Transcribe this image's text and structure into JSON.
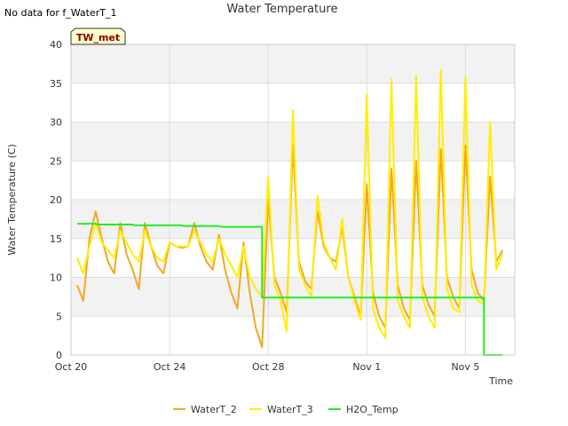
{
  "no_data_text": "No data for f_WaterT_1",
  "badge": {
    "label": "TW_met",
    "fill": "#ffffcc",
    "text_color": "#8b0000"
  },
  "chart_data": {
    "type": "line",
    "title": "Water Temperature",
    "xlabel": "Time",
    "ylabel": "Water Temperature (C)",
    "xlim": [
      "2023-10-20",
      "2023-11-07"
    ],
    "ylim": [
      0,
      40
    ],
    "yticks": [
      0,
      5,
      10,
      15,
      20,
      25,
      30,
      35,
      40
    ],
    "xticks": [
      {
        "date": "2023-10-20",
        "label": "Oct 20"
      },
      {
        "date": "2023-10-24",
        "label": "Oct 24"
      },
      {
        "date": "2023-10-28",
        "label": "Oct 28"
      },
      {
        "date": "2023-11-01",
        "label": "Nov 1"
      },
      {
        "date": "2023-11-05",
        "label": "Nov 5"
      }
    ],
    "grid": true,
    "legend_position": "bottom",
    "series": [
      {
        "name": "WaterT_2",
        "color": "#f5a623",
        "points": [
          [
            "2023-10-20 06:00",
            9.0
          ],
          [
            "2023-10-20 12:00",
            7.0
          ],
          [
            "2023-10-20 18:00",
            15.0
          ],
          [
            "2023-10-21 00:00",
            18.5
          ],
          [
            "2023-10-21 06:00",
            15.0
          ],
          [
            "2023-10-21 12:00",
            12.0
          ],
          [
            "2023-10-21 18:00",
            10.5
          ],
          [
            "2023-10-22 00:00",
            17.0
          ],
          [
            "2023-10-22 06:00",
            13.0
          ],
          [
            "2023-10-22 12:00",
            11.0
          ],
          [
            "2023-10-22 18:00",
            8.5
          ],
          [
            "2023-10-23 00:00",
            17.0
          ],
          [
            "2023-10-23 06:00",
            14.0
          ],
          [
            "2023-10-23 12:00",
            11.5
          ],
          [
            "2023-10-23 18:00",
            10.5
          ],
          [
            "2023-10-24 00:00",
            14.5
          ],
          [
            "2023-10-24 06:00",
            14.0
          ],
          [
            "2023-10-24 12:00",
            13.8
          ],
          [
            "2023-10-24 18:00",
            14.0
          ],
          [
            "2023-10-25 00:00",
            17.0
          ],
          [
            "2023-10-25 06:00",
            14.0
          ],
          [
            "2023-10-25 12:00",
            12.0
          ],
          [
            "2023-10-25 18:00",
            11.0
          ],
          [
            "2023-10-26 00:00",
            15.5
          ],
          [
            "2023-10-26 06:00",
            11.0
          ],
          [
            "2023-10-26 12:00",
            8.0
          ],
          [
            "2023-10-26 18:00",
            6.0
          ],
          [
            "2023-10-27 00:00",
            14.5
          ],
          [
            "2023-10-27 06:00",
            8.0
          ],
          [
            "2023-10-27 12:00",
            3.5
          ],
          [
            "2023-10-27 18:00",
            1.0
          ],
          [
            "2023-10-28 00:00",
            20.0
          ],
          [
            "2023-10-28 06:00",
            10.0
          ],
          [
            "2023-10-28 12:00",
            8.0
          ],
          [
            "2023-10-28 18:00",
            5.5
          ],
          [
            "2023-10-29 00:00",
            27.0
          ],
          [
            "2023-10-29 06:00",
            12.0
          ],
          [
            "2023-10-29 12:00",
            9.5
          ],
          [
            "2023-10-29 18:00",
            8.5
          ],
          [
            "2023-10-30 00:00",
            18.5
          ],
          [
            "2023-10-30 06:00",
            14.0
          ],
          [
            "2023-10-30 12:00",
            12.5
          ],
          [
            "2023-10-30 18:00",
            12.0
          ],
          [
            "2023-10-31 00:00",
            16.5
          ],
          [
            "2023-10-31 06:00",
            10.0
          ],
          [
            "2023-10-31 12:00",
            7.5
          ],
          [
            "2023-10-31 18:00",
            5.0
          ],
          [
            "2023-11-01 00:00",
            22.0
          ],
          [
            "2023-11-01 06:00",
            8.0
          ],
          [
            "2023-11-01 12:00",
            5.0
          ],
          [
            "2023-11-01 18:00",
            3.5
          ],
          [
            "2023-11-02 00:00",
            24.0
          ],
          [
            "2023-11-02 06:00",
            9.0
          ],
          [
            "2023-11-02 12:00",
            6.0
          ],
          [
            "2023-11-02 18:00",
            4.5
          ],
          [
            "2023-11-03 00:00",
            25.0
          ],
          [
            "2023-11-03 06:00",
            9.0
          ],
          [
            "2023-11-03 12:00",
            6.5
          ],
          [
            "2023-11-03 18:00",
            5.0
          ],
          [
            "2023-11-04 00:00",
            26.5
          ],
          [
            "2023-11-04 06:00",
            10.0
          ],
          [
            "2023-11-04 12:00",
            7.5
          ],
          [
            "2023-11-04 18:00",
            6.0
          ],
          [
            "2023-11-05 00:00",
            27.0
          ],
          [
            "2023-11-05 06:00",
            11.0
          ],
          [
            "2023-11-05 12:00",
            8.0
          ],
          [
            "2023-11-05 18:00",
            7.0
          ],
          [
            "2023-11-06 00:00",
            23.0
          ],
          [
            "2023-11-06 06:00",
            12.0
          ],
          [
            "2023-11-06 12:00",
            13.5
          ]
        ]
      },
      {
        "name": "WaterT_3",
        "color": "#ffee00",
        "points": [
          [
            "2023-10-20 06:00",
            12.5
          ],
          [
            "2023-10-20 12:00",
            10.5
          ],
          [
            "2023-10-20 18:00",
            14.0
          ],
          [
            "2023-10-21 00:00",
            17.0
          ],
          [
            "2023-10-21 06:00",
            14.5
          ],
          [
            "2023-10-21 12:00",
            13.5
          ],
          [
            "2023-10-21 18:00",
            12.5
          ],
          [
            "2023-10-22 00:00",
            16.0
          ],
          [
            "2023-10-22 06:00",
            14.5
          ],
          [
            "2023-10-22 12:00",
            13.0
          ],
          [
            "2023-10-22 18:00",
            12.0
          ],
          [
            "2023-10-23 00:00",
            16.0
          ],
          [
            "2023-10-23 06:00",
            14.0
          ],
          [
            "2023-10-23 12:00",
            12.5
          ],
          [
            "2023-10-23 18:00",
            12.0
          ],
          [
            "2023-10-24 00:00",
            14.5
          ],
          [
            "2023-10-24 06:00",
            14.0
          ],
          [
            "2023-10-24 12:00",
            14.0
          ],
          [
            "2023-10-24 18:00",
            14.0
          ],
          [
            "2023-10-25 00:00",
            16.0
          ],
          [
            "2023-10-25 06:00",
            14.5
          ],
          [
            "2023-10-25 12:00",
            13.0
          ],
          [
            "2023-10-25 18:00",
            12.0
          ],
          [
            "2023-10-26 00:00",
            15.0
          ],
          [
            "2023-10-26 06:00",
            13.0
          ],
          [
            "2023-10-26 12:00",
            11.5
          ],
          [
            "2023-10-26 18:00",
            10.0
          ],
          [
            "2023-10-27 00:00",
            14.0
          ],
          [
            "2023-10-27 06:00",
            10.0
          ],
          [
            "2023-10-27 12:00",
            8.5
          ],
          [
            "2023-10-27 18:00",
            7.5
          ],
          [
            "2023-10-28 00:00",
            23.0
          ],
          [
            "2023-10-28 06:00",
            9.0
          ],
          [
            "2023-10-28 12:00",
            7.0
          ],
          [
            "2023-10-28 18:00",
            3.0
          ],
          [
            "2023-10-29 00:00",
            31.5
          ],
          [
            "2023-10-29 06:00",
            11.0
          ],
          [
            "2023-10-29 12:00",
            9.0
          ],
          [
            "2023-10-29 18:00",
            7.5
          ],
          [
            "2023-10-30 00:00",
            20.5
          ],
          [
            "2023-10-30 06:00",
            14.5
          ],
          [
            "2023-10-30 12:00",
            12.5
          ],
          [
            "2023-10-30 18:00",
            11.0
          ],
          [
            "2023-10-31 00:00",
            17.5
          ],
          [
            "2023-10-31 06:00",
            10.0
          ],
          [
            "2023-10-31 12:00",
            7.0
          ],
          [
            "2023-10-31 18:00",
            4.5
          ],
          [
            "2023-11-01 00:00",
            33.5
          ],
          [
            "2023-11-01 06:00",
            6.0
          ],
          [
            "2023-11-01 12:00",
            3.5
          ],
          [
            "2023-11-01 18:00",
            2.2
          ],
          [
            "2023-11-02 00:00",
            35.5
          ],
          [
            "2023-11-02 06:00",
            7.0
          ],
          [
            "2023-11-02 12:00",
            5.0
          ],
          [
            "2023-11-02 18:00",
            3.5
          ],
          [
            "2023-11-03 00:00",
            36.0
          ],
          [
            "2023-11-03 06:00",
            7.5
          ],
          [
            "2023-11-03 12:00",
            5.0
          ],
          [
            "2023-11-03 18:00",
            3.5
          ],
          [
            "2023-11-04 00:00",
            36.7
          ],
          [
            "2023-11-04 06:00",
            8.5
          ],
          [
            "2023-11-04 12:00",
            6.0
          ],
          [
            "2023-11-04 18:00",
            5.5
          ],
          [
            "2023-11-05 00:00",
            35.8
          ],
          [
            "2023-11-05 06:00",
            9.0
          ],
          [
            "2023-11-05 12:00",
            7.0
          ],
          [
            "2023-11-05 18:00",
            6.5
          ],
          [
            "2023-11-06 00:00",
            30.0
          ],
          [
            "2023-11-06 06:00",
            11.0
          ],
          [
            "2023-11-06 12:00",
            13.0
          ]
        ]
      },
      {
        "name": "H2O_Temp",
        "color": "#22ee22",
        "points": [
          [
            "2023-10-20 06:00",
            16.9
          ],
          [
            "2023-10-21 00:00",
            16.9
          ],
          [
            "2023-10-21 02:00",
            16.8
          ],
          [
            "2023-10-22 12:00",
            16.8
          ],
          [
            "2023-10-22 14:00",
            16.7
          ],
          [
            "2023-10-24 12:00",
            16.7
          ],
          [
            "2023-10-24 14:00",
            16.6
          ],
          [
            "2023-10-26 00:00",
            16.6
          ],
          [
            "2023-10-26 02:00",
            16.5
          ],
          [
            "2023-10-27 18:00",
            16.5
          ],
          [
            "2023-10-27 18:01",
            7.4
          ],
          [
            "2023-11-05 18:00",
            7.4
          ],
          [
            "2023-11-05 18:01",
            0.0
          ],
          [
            "2023-11-06 12:00",
            0.0
          ]
        ]
      }
    ]
  }
}
